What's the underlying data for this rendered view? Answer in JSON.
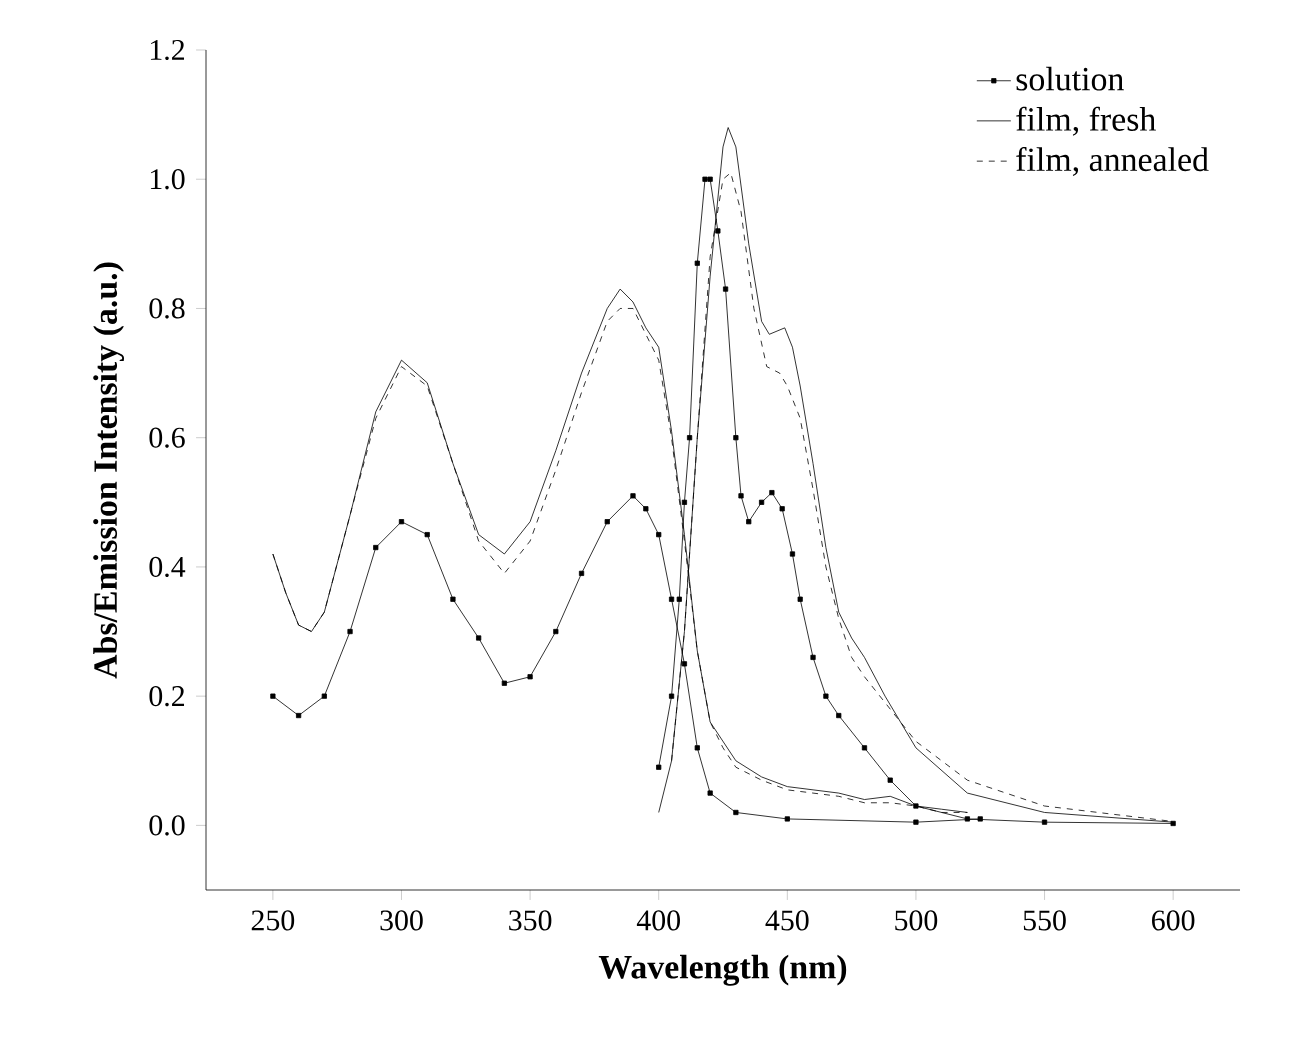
{
  "chart_data": {
    "type": "line",
    "xlabel": "Wavelength (nm)",
    "ylabel": "Abs/Emission Intensity (a.u.)",
    "xlim": [
      224,
      626
    ],
    "ylim": [
      -0.1,
      1.2
    ],
    "xticks": [
      250,
      300,
      350,
      400,
      450,
      500,
      550,
      600
    ],
    "yticks": [
      {
        "value": 0,
        "label": "0.0"
      },
      0.2,
      0.4,
      0.6,
      0.8,
      {
        "value": 1,
        "label": "1.0"
      },
      1.2
    ],
    "legend": "top right",
    "grid": false,
    "series": [
      {
        "name": "solution",
        "color": "#000000",
        "marker": "square",
        "line_style": "solid",
        "x": [
          250,
          260,
          270,
          280,
          290,
          300,
          310,
          320,
          330,
          340,
          350,
          360,
          370,
          380,
          390,
          395,
          400,
          405,
          410,
          415,
          420,
          430,
          450,
          500,
          525
        ],
        "values": [
          0.2,
          0.17,
          0.2,
          0.3,
          0.43,
          0.47,
          0.45,
          0.35,
          0.29,
          0.22,
          0.23,
          0.3,
          0.39,
          0.47,
          0.51,
          0.49,
          0.45,
          0.35,
          0.25,
          0.12,
          0.05,
          0.02,
          0.01,
          0.005,
          0.01
        ]
      },
      {
        "name": "film, fresh",
        "color": "#000000",
        "marker": "none",
        "line_style": "solid",
        "x": [
          250,
          255,
          260,
          265,
          270,
          280,
          290,
          300,
          310,
          320,
          330,
          340,
          350,
          360,
          370,
          380,
          385,
          390,
          395,
          400,
          405,
          410,
          415,
          420,
          425,
          430,
          440,
          450,
          460,
          470,
          480,
          490,
          500,
          510,
          520
        ],
        "values": [
          0.42,
          0.36,
          0.31,
          0.3,
          0.33,
          0.48,
          0.64,
          0.72,
          0.685,
          0.56,
          0.45,
          0.42,
          0.47,
          0.58,
          0.7,
          0.8,
          0.83,
          0.81,
          0.77,
          0.74,
          0.61,
          0.45,
          0.27,
          0.16,
          0.13,
          0.1,
          0.075,
          0.06,
          0.055,
          0.05,
          0.04,
          0.045,
          0.03,
          0.025,
          0.02
        ]
      },
      {
        "name": "film, annealed",
        "color": "#000000",
        "marker": "none",
        "line_style": "dashed",
        "x": [
          250,
          255,
          260,
          265,
          270,
          280,
          290,
          300,
          310,
          320,
          330,
          340,
          350,
          360,
          370,
          380,
          385,
          390,
          395,
          400,
          405,
          410,
          415,
          420,
          425,
          430,
          440,
          450,
          460,
          470,
          480,
          490,
          500,
          510,
          520
        ],
        "values": [
          0.42,
          0.36,
          0.31,
          0.3,
          0.33,
          0.48,
          0.63,
          0.71,
          0.68,
          0.56,
          0.44,
          0.39,
          0.44,
          0.55,
          0.67,
          0.78,
          0.8,
          0.8,
          0.76,
          0.72,
          0.6,
          0.44,
          0.27,
          0.16,
          0.12,
          0.09,
          0.07,
          0.055,
          0.05,
          0.045,
          0.035,
          0.035,
          0.03,
          0.02,
          0.02
        ]
      },
      {
        "color": "#000000",
        "marker": "square",
        "line_style": "solid",
        "x": [
          400,
          405,
          408,
          410,
          412,
          415,
          418,
          420,
          423,
          426,
          430,
          432,
          435,
          440,
          444,
          448,
          452,
          455,
          460,
          465,
          470,
          480,
          490,
          500,
          520,
          550,
          600
        ],
        "values": [
          0.09,
          0.2,
          0.35,
          0.5,
          0.6,
          0.87,
          1.0,
          1.0,
          0.92,
          0.83,
          0.6,
          0.51,
          0.47,
          0.5,
          0.515,
          0.49,
          0.42,
          0.35,
          0.26,
          0.2,
          0.17,
          0.12,
          0.07,
          0.03,
          0.01,
          0.005,
          0.003
        ]
      },
      {
        "color": "#000000",
        "marker": "none",
        "line_style": "solid",
        "x": [
          400,
          405,
          410,
          415,
          420,
          425,
          427,
          430,
          435,
          440,
          443,
          449,
          452,
          455,
          460,
          465,
          470,
          475,
          480,
          488,
          500,
          520,
          550,
          600
        ],
        "values": [
          0.02,
          0.1,
          0.3,
          0.6,
          0.85,
          1.05,
          1.08,
          1.05,
          0.9,
          0.78,
          0.76,
          0.77,
          0.74,
          0.68,
          0.56,
          0.43,
          0.33,
          0.29,
          0.26,
          0.2,
          0.12,
          0.05,
          0.02,
          0.005
        ]
      },
      {
        "color": "#000000",
        "marker": "none",
        "line_style": "dashed",
        "x": [
          405,
          410,
          415,
          420,
          425,
          428,
          432,
          437,
          442,
          447,
          450,
          455,
          460,
          465,
          470,
          475,
          480,
          490,
          500,
          520,
          550,
          600
        ],
        "values": [
          0.1,
          0.3,
          0.6,
          0.88,
          1.0,
          1.01,
          0.95,
          0.8,
          0.71,
          0.7,
          0.68,
          0.63,
          0.52,
          0.4,
          0.32,
          0.26,
          0.23,
          0.18,
          0.13,
          0.07,
          0.03,
          0.006
        ]
      }
    ]
  }
}
